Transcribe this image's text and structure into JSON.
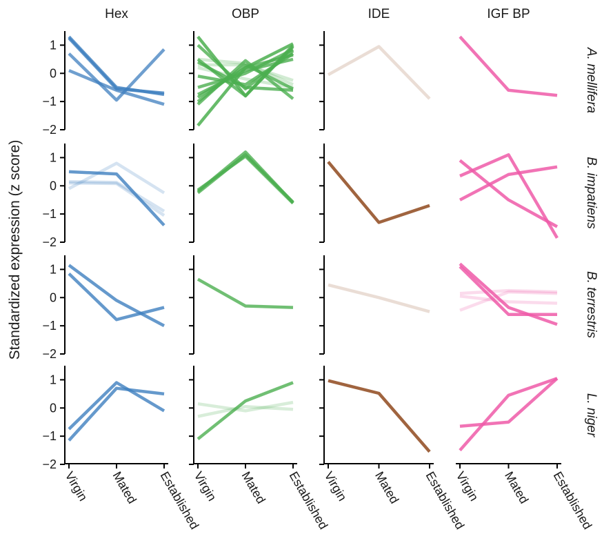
{
  "chart_data": {
    "type": "line",
    "ylabel": "Standardized expression (z score)",
    "ylim": [
      -2,
      1.5
    ],
    "yticks": [
      -2,
      -1,
      0,
      1
    ],
    "categories": [
      "Virgin",
      "Mated",
      "Established"
    ],
    "columns": [
      {
        "title": "Hex",
        "color": "#3f7fbf"
      },
      {
        "title": "OBP",
        "color": "#4caf50"
      },
      {
        "title": "IDE",
        "color": "#a0643f"
      },
      {
        "title": "IGF BP",
        "color": "#ef5ba8"
      }
    ],
    "rows": [
      {
        "title": "A. mellifera",
        "panels": [
          {
            "series": [
              {
                "values": [
                  1.3,
                  -0.5,
                  -0.75
                ],
                "opacity": 0.8
              },
              {
                "values": [
                  1.25,
                  -0.55,
                  -0.7
                ],
                "opacity": 0.8
              },
              {
                "values": [
                  0.7,
                  -0.95,
                  0.85
                ],
                "opacity": 0.75
              },
              {
                "values": [
                  0.1,
                  -0.6,
                  -1.1
                ],
                "opacity": 0.75
              }
            ]
          },
          {
            "series": [
              {
                "values": [
                  1.3,
                  -0.8,
                  0.95
                ],
                "opacity": 0.85
              },
              {
                "values": [
                  1.0,
                  -0.55,
                  0.8
                ],
                "opacity": 0.8
              },
              {
                "values": [
                  0.5,
                  -0.8,
                  1.0
                ],
                "opacity": 0.8
              },
              {
                "values": [
                  -0.1,
                  -0.4,
                  0.7
                ],
                "opacity": 0.8
              },
              {
                "values": [
                  -0.5,
                  0.0,
                  0.85
                ],
                "opacity": 0.8
              },
              {
                "values": [
                  -0.75,
                  0.1,
                  0.5
                ],
                "opacity": 0.8
              },
              {
                "values": [
                  -0.85,
                  0.2,
                  0.65
                ],
                "opacity": 0.8
              },
              {
                "values": [
                  -1.0,
                  0.3,
                  -0.55
                ],
                "opacity": 0.8
              },
              {
                "values": [
                  -1.1,
                  0.45,
                  -0.9
                ],
                "opacity": 0.8
              },
              {
                "values": [
                  -1.85,
                  0.2,
                  1.05
                ],
                "opacity": 0.85
              },
              {
                "values": [
                  0.4,
                  -0.5,
                  -0.6
                ],
                "opacity": 0.8
              },
              {
                "values": [
                  0.5,
                  0.35,
                  -0.4
                ],
                "opacity": 0.25
              },
              {
                "values": [
                  0.3,
                  0.3,
                  -0.25
                ],
                "opacity": 0.25
              },
              {
                "values": [
                  0.2,
                  -0.2,
                  -0.5
                ],
                "opacity": 0.25
              }
            ]
          },
          {
            "series": [
              {
                "values": [
                  -0.05,
                  0.95,
                  -0.9
                ],
                "opacity": 0.22
              }
            ]
          },
          {
            "series": [
              {
                "values": [
                  1.3,
                  -0.6,
                  -0.78
                ],
                "opacity": 0.85
              }
            ]
          }
        ]
      },
      {
        "title": "B. impatiens",
        "panels": [
          {
            "series": [
              {
                "values": [
                  0.5,
                  0.42,
                  -1.4
                ],
                "opacity": 0.8
              },
              {
                "values": [
                  -0.1,
                  0.8,
                  -0.25
                ],
                "opacity": 0.22
              },
              {
                "values": [
                  0.1,
                  0.08,
                  -1.05
                ],
                "opacity": 0.22
              },
              {
                "values": [
                  0.15,
                  0.12,
                  -0.9
                ],
                "opacity": 0.22
              }
            ]
          },
          {
            "series": [
              {
                "values": [
                  -0.2,
                  1.2,
                  -0.6
                ],
                "opacity": 0.8
              },
              {
                "values": [
                  -0.15,
                  1.05,
                  -0.62
                ],
                "opacity": 0.8
              },
              {
                "values": [
                  -0.25,
                  1.1,
                  -0.58
                ],
                "opacity": 0.8
              }
            ]
          },
          {
            "series": [
              {
                "values": [
                  0.85,
                  -1.3,
                  -0.7
                ],
                "opacity": 1.0
              }
            ]
          },
          {
            "series": [
              {
                "values": [
                  0.9,
                  -0.5,
                  -1.45
                ],
                "opacity": 0.85
              },
              {
                "values": [
                  0.35,
                  1.1,
                  -1.85
                ],
                "opacity": 0.85
              },
              {
                "values": [
                  -0.5,
                  0.4,
                  0.67
                ],
                "opacity": 0.85
              }
            ]
          }
        ]
      },
      {
        "title": "B. terrestris",
        "panels": [
          {
            "series": [
              {
                "values": [
                  1.15,
                  -0.1,
                  -1.0
                ],
                "opacity": 0.8
              },
              {
                "values": [
                  0.85,
                  -0.78,
                  -0.35
                ],
                "opacity": 0.8
              }
            ]
          },
          {
            "series": [
              {
                "values": [
                  0.65,
                  -0.3,
                  -0.35
                ],
                "opacity": 0.8
              }
            ]
          },
          {
            "series": [
              {
                "values": [
                  0.45,
                  0.0,
                  -0.5
                ],
                "opacity": 0.22
              }
            ]
          },
          {
            "series": [
              {
                "values": [
                  1.2,
                  -0.35,
                  -0.95
                ],
                "opacity": 0.85
              },
              {
                "values": [
                  1.1,
                  -0.6,
                  -0.6
                ],
                "opacity": 0.85
              },
              {
                "values": [
                  0.15,
                  0.25,
                  0.2
                ],
                "opacity": 0.22
              },
              {
                "values": [
                  -0.45,
                  0.2,
                  0.15
                ],
                "opacity": 0.22
              },
              {
                "values": [
                  0.05,
                  -0.15,
                  -0.2
                ],
                "opacity": 0.22
              }
            ]
          }
        ]
      },
      {
        "title": "L. niger",
        "panels": [
          {
            "series": [
              {
                "values": [
                  -0.75,
                  0.9,
                  -0.1
                ],
                "opacity": 0.8
              },
              {
                "values": [
                  -1.15,
                  0.7,
                  0.5
                ],
                "opacity": 0.8
              }
            ]
          },
          {
            "series": [
              {
                "values": [
                  -1.1,
                  0.25,
                  0.9
                ],
                "opacity": 0.8
              },
              {
                "values": [
                  0.15,
                  -0.1,
                  0.2
                ],
                "opacity": 0.22
              },
              {
                "values": [
                  -0.3,
                  0.05,
                  -0.05
                ],
                "opacity": 0.22
              }
            ]
          },
          {
            "series": [
              {
                "values": [
                  0.97,
                  0.52,
                  -1.55
                ],
                "opacity": 1.0
              }
            ]
          },
          {
            "series": [
              {
                "values": [
                  -0.65,
                  -0.5,
                  1.05
                ],
                "opacity": 0.85
              },
              {
                "values": [
                  -1.5,
                  0.45,
                  1.05
                ],
                "opacity": 0.85
              }
            ]
          }
        ]
      }
    ]
  }
}
